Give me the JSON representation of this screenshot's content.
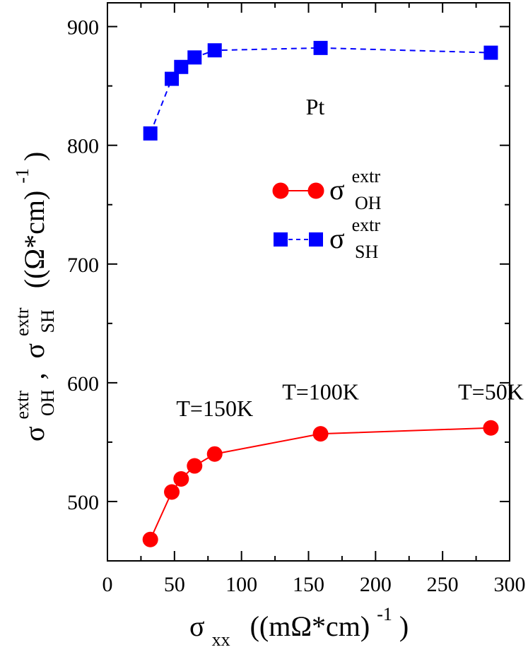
{
  "chart_data": {
    "type": "line",
    "x_axis": {
      "label_main": "σ",
      "label_sub": "xx",
      "label_units": "((mΩ*cm)",
      "label_units_sup": "-1",
      "label_close": ")",
      "range": [
        0,
        300
      ],
      "ticks": [
        0,
        50,
        100,
        150,
        200,
        250,
        300
      ],
      "tick_labels": [
        "0",
        "50",
        "100",
        "150",
        "200",
        "250",
        "300"
      ]
    },
    "y_axis": {
      "label_part1_main": "σ",
      "label_part1_sup": "extr",
      "label_part1_sub": "OH",
      "label_sep": ",",
      "label_part2_main": "σ",
      "label_part2_sup": "extr",
      "label_part2_sub": "SH",
      "label_units": "((Ω*cm)",
      "label_units_sup": "-1",
      "label_close": ")",
      "range": [
        450,
        920
      ],
      "ticks": [
        500,
        600,
        700,
        800,
        900
      ],
      "tick_labels": [
        "500",
        "600",
        "700",
        "800",
        "900"
      ]
    },
    "series": [
      {
        "key": "oh",
        "legend_main": "σ",
        "legend_sup": "extr",
        "legend_sub": "OH",
        "color": "#ff0000",
        "marker": "circle",
        "line": "solid",
        "x": [
          32,
          48,
          55,
          65,
          80,
          159,
          286
        ],
        "y": [
          468,
          508,
          519,
          530,
          540,
          557,
          562
        ]
      },
      {
        "key": "sh",
        "legend_main": "σ",
        "legend_sup": "extr",
        "legend_sub": "SH",
        "color": "#0000ff",
        "marker": "square",
        "line": "dashed",
        "x": [
          32,
          48,
          55,
          65,
          80,
          159,
          286
        ],
        "y": [
          810,
          856,
          866,
          874,
          880,
          882,
          878
        ]
      }
    ],
    "annotations": [
      {
        "text": "Pt",
        "x": 155,
        "y": 826
      },
      {
        "text": "T=150K",
        "x": 80,
        "y": 572
      },
      {
        "text": "T=100K",
        "x": 159,
        "y": 586
      },
      {
        "text": "T=50K",
        "x": 286,
        "y": 586
      }
    ],
    "grid": false,
    "legend_position": "center-right"
  }
}
